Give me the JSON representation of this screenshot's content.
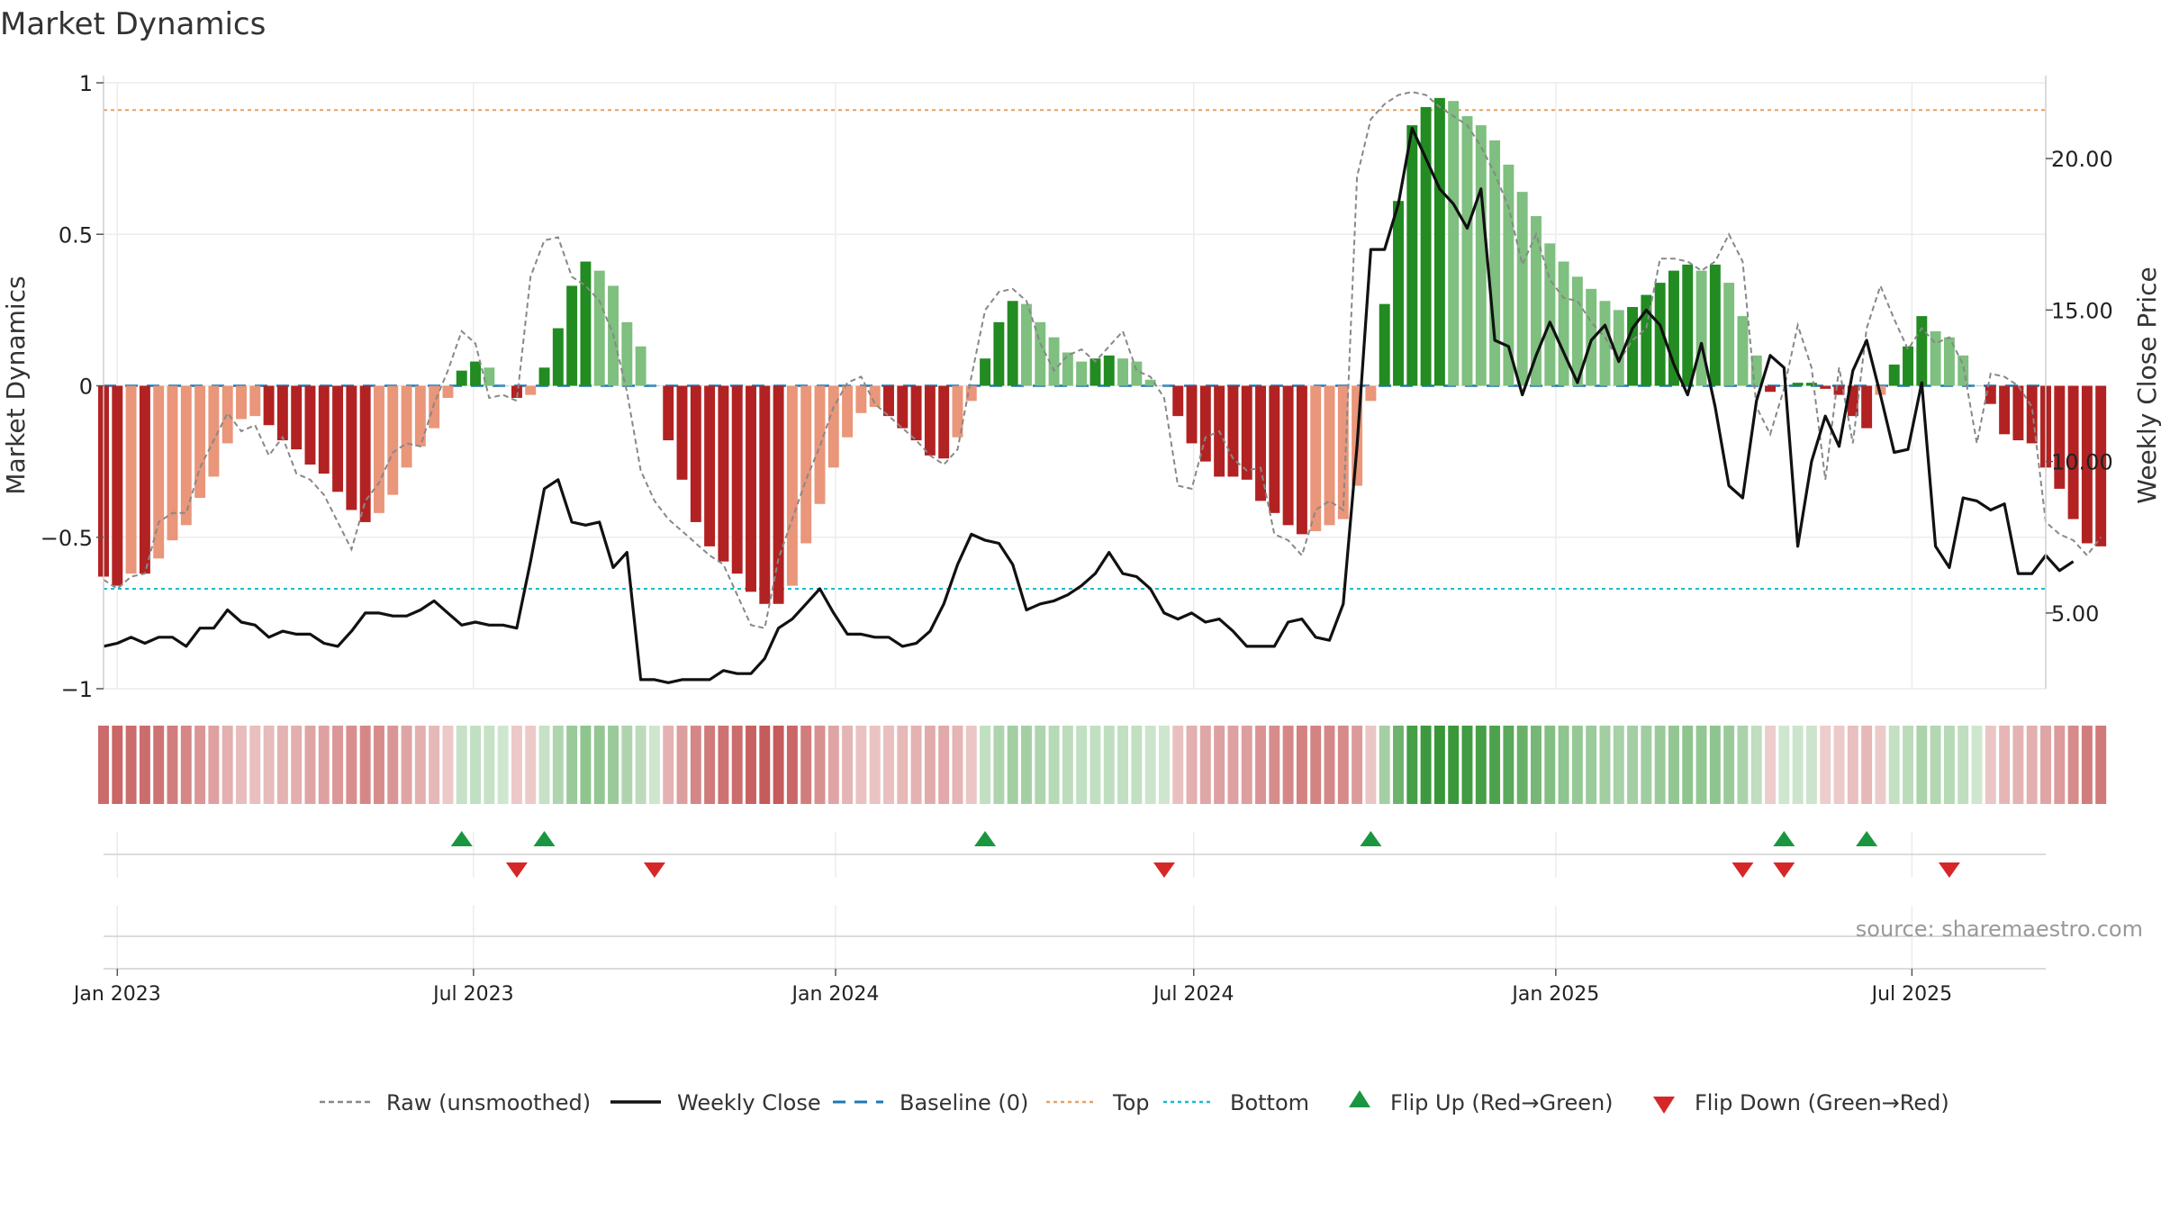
{
  "chart_data": {
    "type": "bar",
    "title": "Market Dynamics",
    "ylabel": "Market Dynamics",
    "y2label": "Weekly Close Price",
    "ylim": [
      -1,
      1
    ],
    "y2lim": [
      2.5,
      22.5
    ],
    "yticks": [
      1,
      0.5,
      0,
      -0.5,
      -1
    ],
    "ytick_labels": [
      "1",
      "0.5",
      "0",
      "−0.5",
      "−1"
    ],
    "y2ticks": [
      20,
      15,
      10,
      5
    ],
    "y2tick_labels": [
      "20.00",
      "15.00",
      "10.00",
      "5.00"
    ],
    "xlim": [
      "2022-12-25",
      "2025-09-07"
    ],
    "xticks": [
      "2023-01-01",
      "2023-07-01",
      "2024-01-01",
      "2024-07-01",
      "2025-01-01",
      "2025-07-01"
    ],
    "xtick_labels": [
      "Jan 2023",
      "Jul 2023",
      "Jan 2024",
      "Jul 2024",
      "Jan 2025",
      "Jul 2025"
    ],
    "week_start": "2022-12-25",
    "top_level": 0.91,
    "bottom_level": -0.67,
    "grid": true,
    "legend_position": "bottom-center",
    "source_text": "source: sharemaestro.com",
    "series": [
      {
        "name": "Weekly Close",
        "type": "line",
        "axis": "right",
        "values": [
          3.9,
          4.0,
          4.2,
          4.0,
          4.2,
          4.2,
          3.9,
          4.5,
          4.5,
          5.1,
          4.7,
          4.6,
          4.2,
          4.4,
          4.3,
          4.3,
          4.0,
          3.9,
          4.4,
          5.0,
          5.0,
          4.9,
          4.9,
          5.1,
          5.4,
          5.0,
          4.6,
          4.7,
          4.6,
          4.6,
          4.5,
          6.7,
          9.1,
          9.4,
          8.0,
          7.9,
          8.0,
          6.5,
          7.0,
          2.8,
          2.8,
          2.7,
          2.8,
          2.8,
          2.8,
          3.1,
          3.0,
          3.0,
          3.5,
          4.5,
          4.8,
          5.3,
          5.8,
          5.0,
          4.3,
          4.3,
          4.2,
          4.2,
          3.9,
          4.0,
          4.4,
          5.3,
          6.6,
          7.6,
          7.4,
          7.3,
          6.6,
          5.1,
          5.3,
          5.4,
          5.6,
          5.9,
          6.3,
          7.0,
          6.3,
          6.2,
          5.8,
          5.0,
          4.8,
          5.0,
          4.7,
          4.8,
          4.4,
          3.9,
          3.9,
          3.9,
          4.7,
          4.8,
          4.2,
          4.1,
          5.3,
          10.5,
          17.0,
          17.0,
          18.5,
          21.0,
          20.0,
          19.0,
          18.5,
          17.7,
          19.0,
          14.0,
          13.8,
          12.2,
          13.5,
          14.6,
          13.6,
          12.6,
          14.0,
          14.5,
          13.3,
          14.4,
          15.0,
          14.5,
          13.2,
          12.2,
          13.9,
          11.8,
          9.2,
          8.8,
          12.0,
          13.5,
          13.1,
          7.2,
          10.0,
          11.5,
          10.5,
          13.0,
          14.0,
          12.2,
          10.3,
          10.4,
          12.6,
          7.2,
          6.5,
          8.8,
          8.7,
          8.4,
          8.6,
          6.3,
          6.3,
          6.9,
          6.4,
          6.7
        ]
      },
      {
        "name": "Raw (unsmoothed)",
        "type": "line",
        "axis": "left",
        "values": [
          -0.64,
          -0.67,
          -0.63,
          -0.62,
          -0.45,
          -0.42,
          -0.42,
          -0.27,
          -0.18,
          -0.09,
          -0.15,
          -0.13,
          -0.23,
          -0.17,
          -0.29,
          -0.31,
          -0.36,
          -0.45,
          -0.54,
          -0.38,
          -0.32,
          -0.22,
          -0.19,
          -0.2,
          -0.06,
          0.05,
          0.18,
          0.14,
          -0.04,
          -0.03,
          -0.05,
          0.36,
          0.48,
          0.49,
          0.36,
          0.33,
          0.28,
          0.17,
          -0.02,
          -0.28,
          -0.38,
          -0.44,
          -0.48,
          -0.52,
          -0.56,
          -0.59,
          -0.69,
          -0.79,
          -0.8,
          -0.57,
          -0.44,
          -0.31,
          -0.2,
          -0.07,
          0.01,
          0.03,
          -0.06,
          -0.1,
          -0.14,
          -0.18,
          -0.23,
          -0.26,
          -0.21,
          0.03,
          0.25,
          0.31,
          0.32,
          0.28,
          0.14,
          0.05,
          0.1,
          0.12,
          0.08,
          0.13,
          0.18,
          0.05,
          0.03,
          -0.04,
          -0.33,
          -0.34,
          -0.17,
          -0.15,
          -0.24,
          -0.28,
          -0.27,
          -0.49,
          -0.51,
          -0.56,
          -0.41,
          -0.38,
          -0.41,
          0.69,
          0.88,
          0.93,
          0.96,
          0.97,
          0.96,
          0.92,
          0.89,
          0.86,
          0.79,
          0.7,
          0.59,
          0.4,
          0.5,
          0.35,
          0.29,
          0.28,
          0.21,
          0.16,
          0.08,
          0.15,
          0.19,
          0.42,
          0.42,
          0.41,
          0.38,
          0.41,
          0.5,
          0.41,
          -0.07,
          -0.16,
          -0.01,
          0.2,
          0.06,
          -0.31,
          0.06,
          -0.19,
          0.19,
          0.33,
          0.22,
          0.12,
          0.19,
          0.14,
          0.16,
          0.07,
          -0.19,
          0.04,
          0.03,
          0.0,
          -0.07,
          -0.45,
          -0.49,
          -0.51,
          -0.56,
          -0.5
        ]
      },
      {
        "name": "Market Dynamics",
        "type": "bar",
        "axis": "left",
        "values": [
          -0.63,
          -0.66,
          -0.62,
          -0.62,
          -0.57,
          -0.51,
          -0.46,
          -0.37,
          -0.3,
          -0.19,
          -0.11,
          -0.1,
          -0.13,
          -0.18,
          -0.21,
          -0.26,
          -0.29,
          -0.35,
          -0.41,
          -0.45,
          -0.42,
          -0.36,
          -0.27,
          -0.2,
          -0.14,
          -0.04,
          0.05,
          0.08,
          0.06,
          0.0,
          -0.04,
          -0.03,
          0.06,
          0.19,
          0.33,
          0.41,
          0.38,
          0.33,
          0.21,
          0.13,
          0.0,
          -0.18,
          -0.31,
          -0.45,
          -0.53,
          -0.58,
          -0.62,
          -0.68,
          -0.72,
          -0.72,
          -0.66,
          -0.52,
          -0.39,
          -0.27,
          -0.17,
          -0.09,
          -0.07,
          -0.1,
          -0.14,
          -0.18,
          -0.23,
          -0.24,
          -0.17,
          -0.05,
          0.09,
          0.21,
          0.28,
          0.27,
          0.21,
          0.16,
          0.11,
          0.08,
          0.09,
          0.1,
          0.09,
          0.08,
          0.02,
          0.0,
          -0.1,
          -0.19,
          -0.25,
          -0.3,
          -0.3,
          -0.31,
          -0.38,
          -0.42,
          -0.46,
          -0.49,
          -0.48,
          -0.46,
          -0.44,
          -0.33,
          -0.05,
          0.27,
          0.61,
          0.86,
          0.92,
          0.95,
          0.94,
          0.89,
          0.86,
          0.81,
          0.73,
          0.64,
          0.56,
          0.47,
          0.41,
          0.36,
          0.32,
          0.28,
          0.25,
          0.26,
          0.3,
          0.34,
          0.38,
          0.4,
          0.38,
          0.4,
          0.34,
          0.23,
          0.1,
          -0.02,
          0.0,
          0.01,
          0.01,
          -0.01,
          -0.03,
          -0.1,
          -0.14,
          -0.03,
          0.07,
          0.13,
          0.23,
          0.18,
          0.16,
          0.1,
          0.0,
          -0.06,
          -0.16,
          -0.18,
          -0.19,
          -0.27,
          -0.34,
          -0.44,
          -0.52,
          -0.53
        ]
      }
    ],
    "flip_up_weeks": [
      26,
      32,
      64,
      92,
      122,
      128
    ],
    "flip_down_weeks": [
      30,
      40,
      77,
      119,
      122,
      134
    ]
  },
  "legend": [
    {
      "label": "Raw (unsmoothed)",
      "icon": "dashed-gray-line",
      "color": "#888888"
    },
    {
      "label": "Weekly Close",
      "icon": "solid-black-line",
      "color": "#111111"
    },
    {
      "label": "Baseline (0)",
      "icon": "dashed-blue-line",
      "color": "#1f77b4"
    },
    {
      "label": "Top",
      "icon": "dotted-orange-line",
      "color": "#e8a060"
    },
    {
      "label": "Bottom",
      "icon": "dotted-cyan-line",
      "color": "#17becf"
    },
    {
      "label": "Flip Up (Red→Green)",
      "icon": "triangle-up-icon",
      "color": "#1a9641"
    },
    {
      "label": "Flip Down (Green→Red)",
      "icon": "triangle-down-icon",
      "color": "#d62728"
    }
  ],
  "colors": {
    "strong_green": "#228B22",
    "light_green": "#7fbf7f",
    "strong_red": "#b22222",
    "light_red": "#e9967a",
    "flip_up": "#1a9641",
    "flip_down": "#d62728",
    "baseline": "#1f77b4",
    "top": "#e8a060",
    "bottom": "#17becf"
  }
}
